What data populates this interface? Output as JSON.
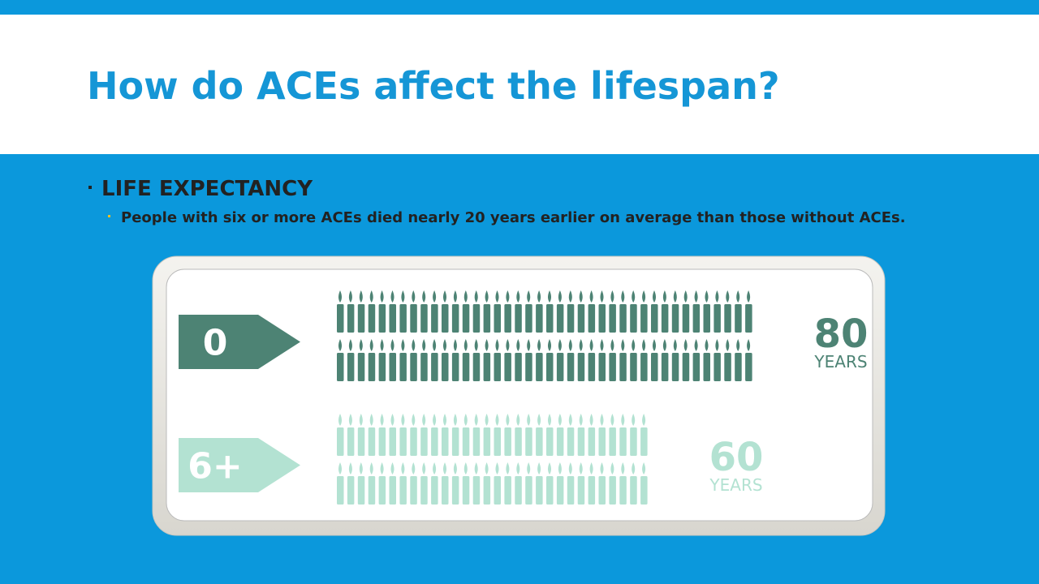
{
  "header": {
    "title": "How do ACEs affect the lifespan?"
  },
  "bullets": [
    {
      "text": "LIFE EXPECTANCY",
      "sub": "People with six or more ACEs died nearly 20 years earlier on average than those without ACEs."
    }
  ],
  "infographic": {
    "rows": [
      {
        "label": "0",
        "value": 80,
        "unit": "YEARS",
        "color": "#4d8374"
      },
      {
        "label": "6+",
        "value": 60,
        "unit": "YEARS",
        "color": "#b3e2d2"
      }
    ]
  }
}
